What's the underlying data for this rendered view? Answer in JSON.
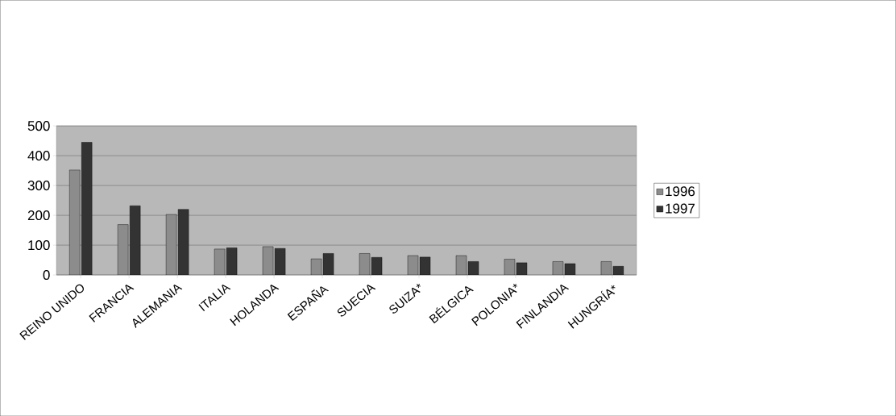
{
  "chart_data": {
    "type": "bar",
    "categories": [
      "REINO UNIDO",
      "FRANCIA",
      "ALEMANIA",
      "ITALIA",
      "HOLANDA",
      "ESPAÑA",
      "SUECIA",
      "SUIZA*",
      "BÉLGICA",
      "POLONIA*",
      "FINLANDIA",
      "HUNGRÍA*"
    ],
    "series": [
      {
        "name": "1996",
        "color": "#8c8c8c",
        "values": [
          352,
          169,
          203,
          87,
          95,
          54,
          72,
          65,
          65,
          53,
          45,
          45
        ]
      },
      {
        "name": "1997",
        "color": "#333333",
        "values": [
          445,
          232,
          220,
          91,
          89,
          72,
          59,
          60,
          45,
          41,
          38,
          29
        ]
      }
    ],
    "ylim": [
      0,
      500
    ],
    "yticks": [
      0,
      100,
      200,
      300,
      400,
      500
    ],
    "grid": "y",
    "legend": "right"
  }
}
